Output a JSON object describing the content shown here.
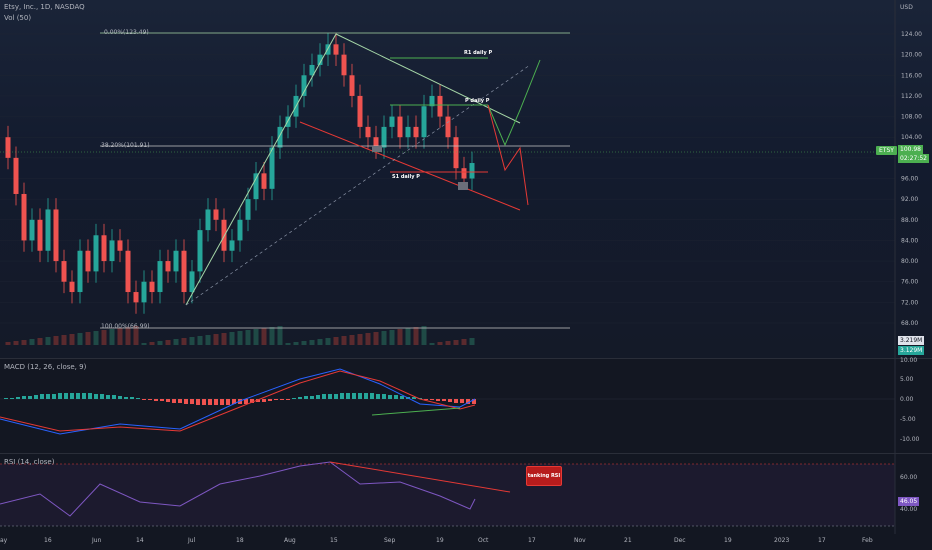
{
  "header": {
    "symbol_line": "Etsy, Inc., 1D, NASDAQ",
    "volume_label": "Vol (50)",
    "currency": "USD"
  },
  "price_axis": [
    "124.00",
    "120.00",
    "116.00",
    "112.00",
    "108.00",
    "104.00",
    "100.00",
    "96.00",
    "92.00",
    "88.00",
    "84.00",
    "80.00",
    "76.00",
    "72.00",
    "68.00"
  ],
  "price_tag": {
    "ticker": "ETSY",
    "price": "100.98",
    "countdown": "02:27:52"
  },
  "volume_tags": [
    "3.219M",
    "3.129M"
  ],
  "fib": {
    "top": "0.00%(123.49)",
    "mid": "38.20%(101.91)",
    "bottom": "100.00%(66.99)"
  },
  "pivots": {
    "r1": "R1 daily P",
    "p": "P daily P",
    "s1": "S1 daily P"
  },
  "macd": {
    "label": "MACD (12, 26, close, 9)",
    "axis": [
      "10.00",
      "5.00",
      "0.00",
      "-5.00",
      "-10.00"
    ]
  },
  "rsi": {
    "label": "RSI (14, close)",
    "axis": [
      "60.00",
      "46.05",
      "40.00"
    ],
    "value": "46.05",
    "callout": "tanking RSI"
  },
  "time_axis": [
    "ay",
    "16",
    "Jun",
    "14",
    "Jul",
    "18",
    "Aug",
    "15",
    "Sep",
    "19",
    "Oct",
    "17",
    "Nov",
    "21",
    "Dec",
    "19",
    "2023",
    "17",
    "Feb"
  ],
  "colors": {
    "up": "#26a69a",
    "down": "#ef5350",
    "macd": "#2962ff",
    "signal": "#ff6d00",
    "trend": "#a5d6a7",
    "rsi": "#7e57c2",
    "accent_green": "#4caf50"
  }
}
